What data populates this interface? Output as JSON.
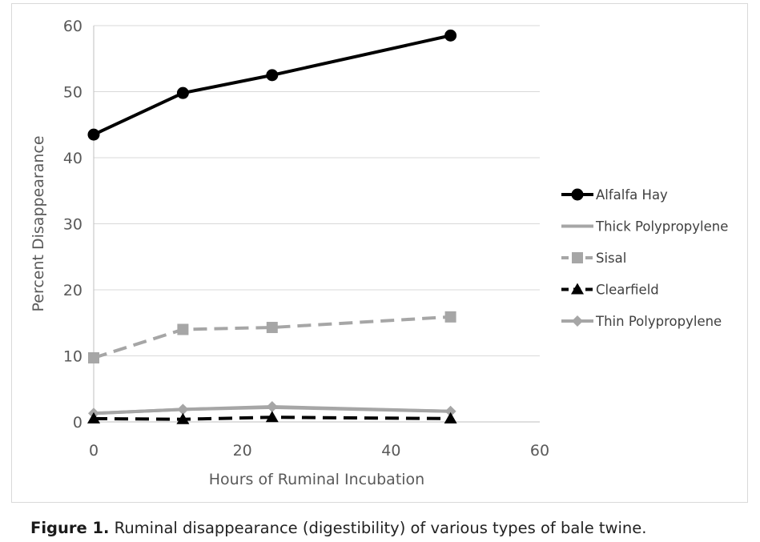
{
  "chart_data": {
    "type": "line",
    "xlabel": "Hours of Ruminal Incubation",
    "ylabel": "Percent Disappearance",
    "xlim": [
      0,
      60
    ],
    "ylim": [
      0,
      60
    ],
    "x_ticks": [
      0,
      20,
      40,
      60
    ],
    "y_ticks": [
      0,
      10,
      20,
      30,
      40,
      50,
      60
    ],
    "grid": "horizontal",
    "legend_position": "right",
    "x": [
      0,
      12,
      24,
      48
    ],
    "series": [
      {
        "name": "Alfalfa Hay",
        "values": [
          43.5,
          49.8,
          52.5,
          58.5
        ],
        "color": "#000000",
        "line_style": "solid",
        "marker": "circle"
      },
      {
        "name": "Thick Polypropylene",
        "values": [
          1.3,
          1.9,
          2.2,
          1.6
        ],
        "color": "#a6a6a6",
        "line_style": "solid",
        "marker": "none"
      },
      {
        "name": "Sisal",
        "values": [
          9.7,
          14.0,
          14.3,
          15.9
        ],
        "color": "#a6a6a6",
        "line_style": "dashed",
        "marker": "square"
      },
      {
        "name": "Clearfield",
        "values": [
          0.5,
          0.4,
          0.7,
          0.5
        ],
        "color": "#000000",
        "line_style": "dashed",
        "marker": "triangle"
      },
      {
        "name": "Thin Polypropylene",
        "values": [
          1.3,
          1.9,
          2.3,
          1.6
        ],
        "color": "#a6a6a6",
        "line_style": "solid",
        "marker": "diamond"
      }
    ]
  },
  "caption": {
    "label": "Figure 1.",
    "text": " Ruminal disappearance (digestibility) of various types of bale twine."
  }
}
